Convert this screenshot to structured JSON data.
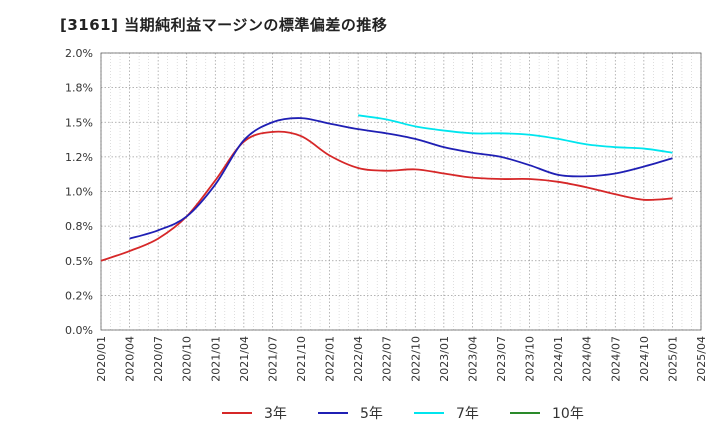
{
  "title": "[3161]  当期純利益マージンの標準偏差の推移",
  "chart_data": {
    "type": "line",
    "ylim": [
      0,
      2.0
    ],
    "yticks": [
      "0.0%",
      "0.2%",
      "0.5%",
      "0.8%",
      "1.0%",
      "1.2%",
      "1.5%",
      "1.8%",
      "2.0%"
    ],
    "ytick_values": [
      0,
      0.25,
      0.5,
      0.75,
      1.0,
      1.25,
      1.5,
      1.75,
      2.0
    ],
    "xticks": [
      "2020/01",
      "2020/04",
      "2020/07",
      "2020/10",
      "2021/01",
      "2021/04",
      "2021/07",
      "2021/10",
      "2022/01",
      "2022/04",
      "2022/07",
      "2022/10",
      "2023/01",
      "2023/04",
      "2023/07",
      "2023/10",
      "2024/01",
      "2024/04",
      "2024/07",
      "2024/10",
      "2025/01",
      "2025/04"
    ],
    "grid": true,
    "legend_position": "bottom",
    "series": [
      {
        "name": "3年",
        "color": "#d62728",
        "points": [
          [
            "2020/01",
            0.5
          ],
          [
            "2020/04",
            0.57
          ],
          [
            "2020/07",
            0.66
          ],
          [
            "2020/10",
            0.82
          ],
          [
            "2021/01",
            1.08
          ],
          [
            "2021/04",
            1.36
          ],
          [
            "2021/07",
            1.43
          ],
          [
            "2021/10",
            1.4
          ],
          [
            "2022/01",
            1.26
          ],
          [
            "2022/04",
            1.17
          ],
          [
            "2022/07",
            1.15
          ],
          [
            "2022/10",
            1.16
          ],
          [
            "2023/01",
            1.13
          ],
          [
            "2023/04",
            1.1
          ],
          [
            "2023/07",
            1.09
          ],
          [
            "2023/10",
            1.09
          ],
          [
            "2024/01",
            1.07
          ],
          [
            "2024/04",
            1.03
          ],
          [
            "2024/07",
            0.98
          ],
          [
            "2024/10",
            0.94
          ],
          [
            "2025/01",
            0.95
          ]
        ]
      },
      {
        "name": "5年",
        "color": "#1f1fb4",
        "points": [
          [
            "2020/04",
            0.66
          ],
          [
            "2020/07",
            0.72
          ],
          [
            "2020/10",
            0.82
          ],
          [
            "2021/01",
            1.05
          ],
          [
            "2021/04",
            1.37
          ],
          [
            "2021/07",
            1.5
          ],
          [
            "2021/10",
            1.53
          ],
          [
            "2022/01",
            1.49
          ],
          [
            "2022/04",
            1.45
          ],
          [
            "2022/07",
            1.42
          ],
          [
            "2022/10",
            1.38
          ],
          [
            "2023/01",
            1.32
          ],
          [
            "2023/04",
            1.28
          ],
          [
            "2023/07",
            1.25
          ],
          [
            "2023/10",
            1.19
          ],
          [
            "2024/01",
            1.12
          ],
          [
            "2024/04",
            1.11
          ],
          [
            "2024/07",
            1.13
          ],
          [
            "2024/10",
            1.18
          ],
          [
            "2025/01",
            1.24
          ]
        ]
      },
      {
        "name": "7年",
        "color": "#00e5ee",
        "points": [
          [
            "2022/04",
            1.55
          ],
          [
            "2022/07",
            1.52
          ],
          [
            "2022/10",
            1.47
          ],
          [
            "2023/01",
            1.44
          ],
          [
            "2023/04",
            1.42
          ],
          [
            "2023/07",
            1.42
          ],
          [
            "2023/10",
            1.41
          ],
          [
            "2024/01",
            1.38
          ],
          [
            "2024/04",
            1.34
          ],
          [
            "2024/07",
            1.32
          ],
          [
            "2024/10",
            1.31
          ],
          [
            "2025/01",
            1.28
          ]
        ]
      },
      {
        "name": "10年",
        "color": "#2a8a2a",
        "points": []
      }
    ]
  }
}
